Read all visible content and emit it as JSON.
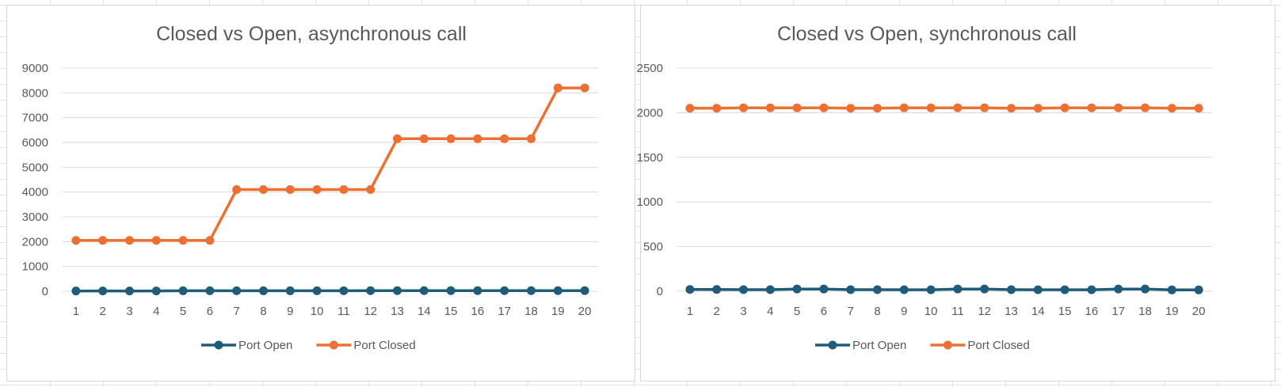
{
  "colors": {
    "port_open": "#1f5c7a",
    "port_closed": "#ed7032"
  },
  "chart_data": [
    {
      "type": "line",
      "title": "Closed vs Open, asynchronous call",
      "x": [
        1,
        2,
        3,
        4,
        5,
        6,
        7,
        8,
        9,
        10,
        11,
        12,
        13,
        14,
        15,
        16,
        17,
        18,
        19,
        20
      ],
      "ylim": [
        0,
        9000
      ],
      "yticks": [
        0,
        1000,
        2000,
        3000,
        4000,
        5000,
        6000,
        7000,
        8000,
        9000
      ],
      "grid": true,
      "legend": "bottom",
      "series": [
        {
          "name": "Port Open",
          "color": "#1f5c7a",
          "values": [
            10,
            12,
            11,
            12,
            18,
            20,
            20,
            18,
            18,
            20,
            20,
            25,
            25,
            25,
            25,
            25,
            25,
            25,
            25,
            25
          ]
        },
        {
          "name": "Port Closed",
          "color": "#ed7032",
          "values": [
            2050,
            2050,
            2050,
            2050,
            2050,
            2050,
            4100,
            4100,
            4100,
            4100,
            4100,
            4100,
            6150,
            6150,
            6150,
            6150,
            6150,
            6150,
            8200,
            8200
          ]
        }
      ]
    },
    {
      "type": "line",
      "title": "Closed vs Open, synchronous call",
      "x": [
        1,
        2,
        3,
        4,
        5,
        6,
        7,
        8,
        9,
        10,
        11,
        12,
        13,
        14,
        15,
        16,
        17,
        18,
        19,
        20
      ],
      "ylim": [
        0,
        2500
      ],
      "yticks": [
        0,
        500,
        1000,
        1500,
        2000,
        2500
      ],
      "grid": true,
      "legend": "bottom",
      "series": [
        {
          "name": "Port Open",
          "color": "#1f5c7a",
          "values": [
            20,
            20,
            18,
            18,
            25,
            25,
            18,
            18,
            17,
            17,
            25,
            25,
            18,
            17,
            17,
            17,
            25,
            25,
            15,
            15
          ]
        },
        {
          "name": "Port Closed",
          "color": "#ed7032",
          "values": [
            2050,
            2050,
            2055,
            2055,
            2055,
            2055,
            2050,
            2050,
            2055,
            2055,
            2055,
            2055,
            2050,
            2050,
            2055,
            2055,
            2055,
            2055,
            2050,
            2050
          ]
        }
      ]
    }
  ]
}
